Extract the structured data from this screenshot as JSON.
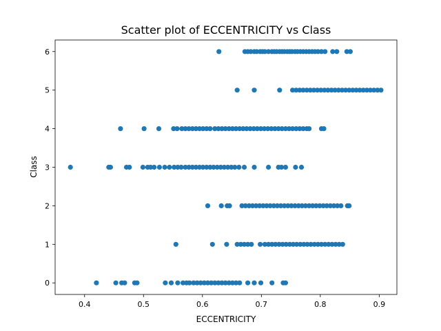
{
  "chart_data": {
    "type": "scatter",
    "title": "Scatter plot of ECCENTRICITY vs Class",
    "xlabel": "ECCENTRICITY",
    "ylabel": "Class",
    "xlim": [
      0.35,
      0.93
    ],
    "ylim": [
      -0.3,
      6.3
    ],
    "xticks": [
      "0.4",
      "0.5",
      "0.6",
      "0.7",
      "0.8",
      "0.9"
    ],
    "yticks": [
      "0",
      "1",
      "2",
      "3",
      "4",
      "5",
      "6"
    ],
    "grid": false,
    "legend": "none",
    "marker_color": "#1f77b4",
    "series": [
      {
        "class": 6,
        "x": [
          0.628,
          0.672,
          0.677,
          0.682,
          0.688,
          0.692,
          0.698,
          0.702,
          0.706,
          0.712,
          0.718,
          0.722,
          0.726,
          0.731,
          0.735,
          0.739,
          0.744,
          0.748,
          0.752,
          0.757,
          0.761,
          0.766,
          0.771,
          0.776,
          0.781,
          0.786,
          0.791,
          0.796,
          0.802,
          0.808,
          0.821,
          0.828,
          0.845,
          0.851
        ]
      },
      {
        "class": 5,
        "x": [
          0.659,
          0.688,
          0.731,
          0.753,
          0.759,
          0.765,
          0.771,
          0.777,
          0.783,
          0.789,
          0.795,
          0.801,
          0.807,
          0.813,
          0.819,
          0.825,
          0.831,
          0.837,
          0.843,
          0.849,
          0.855,
          0.861,
          0.867,
          0.873,
          0.879,
          0.885,
          0.891,
          0.897,
          0.903
        ]
      },
      {
        "class": 4,
        "x": [
          0.461,
          0.501,
          0.526,
          0.551,
          0.557,
          0.565,
          0.571,
          0.577,
          0.583,
          0.589,
          0.595,
          0.601,
          0.607,
          0.613,
          0.621,
          0.627,
          0.633,
          0.639,
          0.645,
          0.651,
          0.657,
          0.663,
          0.669,
          0.675,
          0.681,
          0.687,
          0.693,
          0.699,
          0.705,
          0.711,
          0.717,
          0.723,
          0.729,
          0.735,
          0.741,
          0.747,
          0.753,
          0.759,
          0.765,
          0.771,
          0.777,
          0.781,
          0.802,
          0.806
        ]
      },
      {
        "class": 3,
        "x": [
          0.376,
          0.441,
          0.444,
          0.471,
          0.476,
          0.499,
          0.507,
          0.512,
          0.518,
          0.527,
          0.536,
          0.544,
          0.552,
          0.558,
          0.564,
          0.571,
          0.577,
          0.583,
          0.589,
          0.595,
          0.601,
          0.607,
          0.613,
          0.619,
          0.625,
          0.631,
          0.637,
          0.643,
          0.649,
          0.655,
          0.662,
          0.671,
          0.688,
          0.712,
          0.729,
          0.734,
          0.741,
          0.758,
          0.768
        ]
      },
      {
        "class": 2,
        "x": [
          0.609,
          0.632,
          0.642,
          0.646,
          0.667,
          0.673,
          0.679,
          0.685,
          0.691,
          0.697,
          0.703,
          0.709,
          0.715,
          0.721,
          0.727,
          0.733,
          0.739,
          0.745,
          0.751,
          0.757,
          0.763,
          0.769,
          0.775,
          0.781,
          0.787,
          0.793,
          0.799,
          0.805,
          0.811,
          0.817,
          0.823,
          0.829,
          0.835,
          0.846,
          0.849
        ]
      },
      {
        "class": 1,
        "x": [
          0.555,
          0.617,
          0.641,
          0.659,
          0.665,
          0.671,
          0.677,
          0.683,
          0.698,
          0.706,
          0.712,
          0.718,
          0.724,
          0.73,
          0.736,
          0.742,
          0.748,
          0.754,
          0.76,
          0.766,
          0.772,
          0.778,
          0.784,
          0.79,
          0.796,
          0.802,
          0.808,
          0.814,
          0.82,
          0.826,
          0.832,
          0.838
        ]
      },
      {
        "class": 0,
        "x": [
          0.42,
          0.453,
          0.463,
          0.468,
          0.485,
          0.489,
          0.537,
          0.547,
          0.558,
          0.567,
          0.573,
          0.578,
          0.585,
          0.591,
          0.597,
          0.603,
          0.609,
          0.615,
          0.621,
          0.627,
          0.633,
          0.639,
          0.645,
          0.651,
          0.657,
          0.663,
          0.677,
          0.688,
          0.699,
          0.718,
          0.737,
          0.741
        ]
      }
    ]
  }
}
